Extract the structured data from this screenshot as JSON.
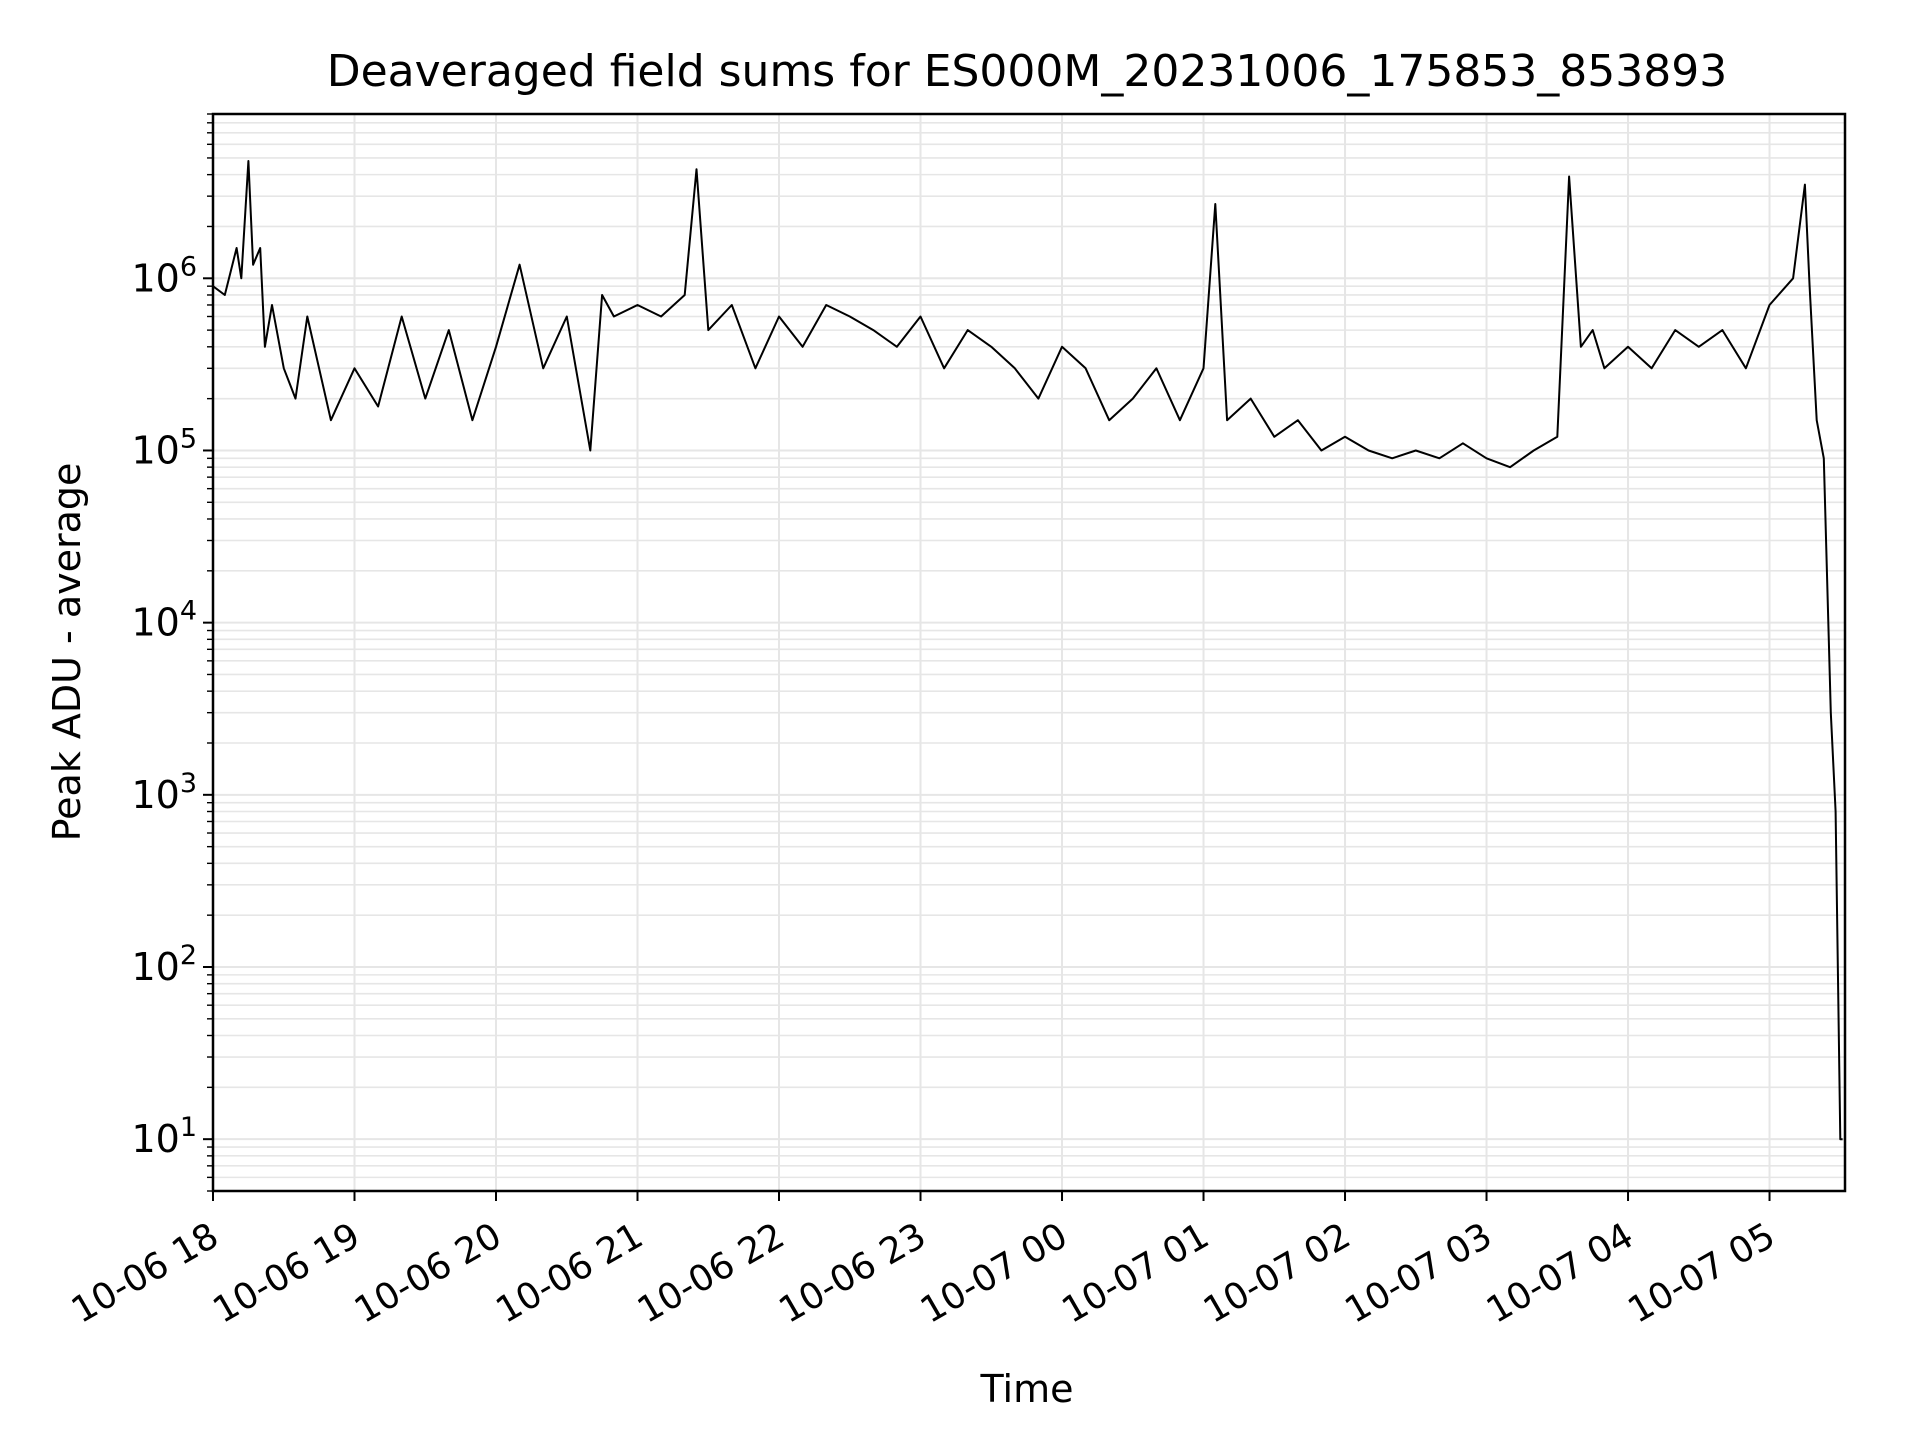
{
  "chart_data": {
    "type": "line",
    "title": "Deaveraged field sums for ES000M_20231006_175853_853893",
    "xlabel": "Time",
    "ylabel": "Peak ADU - average",
    "yscale": "log",
    "ylim": [
      5,
      9000000
    ],
    "xlim": [
      "2023-10-06 18:00",
      "2023-10-07 05:32"
    ],
    "grid": true,
    "line_color": "#000000",
    "grid_color": "#e6e6e6",
    "x_ticks": [
      {
        "time": "2023-10-06 18:00",
        "label": "10-06 18"
      },
      {
        "time": "2023-10-06 19:00",
        "label": "10-06 19"
      },
      {
        "time": "2023-10-06 20:00",
        "label": "10-06 20"
      },
      {
        "time": "2023-10-06 21:00",
        "label": "10-06 21"
      },
      {
        "time": "2023-10-06 22:00",
        "label": "10-06 22"
      },
      {
        "time": "2023-10-06 23:00",
        "label": "10-06 23"
      },
      {
        "time": "2023-10-07 00:00",
        "label": "10-07 00"
      },
      {
        "time": "2023-10-07 01:00",
        "label": "10-07 01"
      },
      {
        "time": "2023-10-07 02:00",
        "label": "10-07 02"
      },
      {
        "time": "2023-10-07 03:00",
        "label": "10-07 03"
      },
      {
        "time": "2023-10-07 04:00",
        "label": "10-07 04"
      },
      {
        "time": "2023-10-07 05:00",
        "label": "10-07 05"
      }
    ],
    "y_ticks": [
      {
        "value": 10,
        "base": "10",
        "exp": "1"
      },
      {
        "value": 100,
        "base": "10",
        "exp": "2"
      },
      {
        "value": 1000,
        "base": "10",
        "exp": "3"
      },
      {
        "value": 10000,
        "base": "10",
        "exp": "4"
      },
      {
        "value": 100000,
        "base": "10",
        "exp": "5"
      },
      {
        "value": 1000000,
        "base": "10",
        "exp": "6"
      }
    ],
    "series": [
      {
        "x": [
          "2023-10-06 18:00",
          "2023-10-06 18:05",
          "2023-10-06 18:10",
          "2023-10-06 18:12",
          "2023-10-06 18:15",
          "2023-10-06 18:17",
          "2023-10-06 18:20",
          "2023-10-06 18:22",
          "2023-10-06 18:25",
          "2023-10-06 18:30",
          "2023-10-06 18:35",
          "2023-10-06 18:40",
          "2023-10-06 18:50",
          "2023-10-06 19:00",
          "2023-10-06 19:10",
          "2023-10-06 19:20",
          "2023-10-06 19:30",
          "2023-10-06 19:40",
          "2023-10-06 19:50",
          "2023-10-06 20:00",
          "2023-10-06 20:10",
          "2023-10-06 20:20",
          "2023-10-06 20:30",
          "2023-10-06 20:40",
          "2023-10-06 20:45",
          "2023-10-06 20:50",
          "2023-10-06 21:00",
          "2023-10-06 21:10",
          "2023-10-06 21:20",
          "2023-10-06 21:25",
          "2023-10-06 21:30",
          "2023-10-06 21:40",
          "2023-10-06 21:50",
          "2023-10-06 22:00",
          "2023-10-06 22:10",
          "2023-10-06 22:20",
          "2023-10-06 22:30",
          "2023-10-06 22:40",
          "2023-10-06 22:50",
          "2023-10-06 23:00",
          "2023-10-06 23:10",
          "2023-10-06 23:20",
          "2023-10-06 23:30",
          "2023-10-06 23:40",
          "2023-10-06 23:50",
          "2023-10-07 00:00",
          "2023-10-07 00:10",
          "2023-10-07 00:20",
          "2023-10-07 00:30",
          "2023-10-07 00:40",
          "2023-10-07 00:50",
          "2023-10-07 01:00",
          "2023-10-07 01:05",
          "2023-10-07 01:10",
          "2023-10-07 01:20",
          "2023-10-07 01:30",
          "2023-10-07 01:40",
          "2023-10-07 01:50",
          "2023-10-07 02:00",
          "2023-10-07 02:10",
          "2023-10-07 02:20",
          "2023-10-07 02:30",
          "2023-10-07 02:40",
          "2023-10-07 02:50",
          "2023-10-07 03:00",
          "2023-10-07 03:10",
          "2023-10-07 03:20",
          "2023-10-07 03:30",
          "2023-10-07 03:35",
          "2023-10-07 03:40",
          "2023-10-07 03:45",
          "2023-10-07 03:50",
          "2023-10-07 04:00",
          "2023-10-07 04:10",
          "2023-10-07 04:20",
          "2023-10-07 04:30",
          "2023-10-07 04:40",
          "2023-10-07 04:50",
          "2023-10-07 05:00",
          "2023-10-07 05:10",
          "2023-10-07 05:15",
          "2023-10-07 05:17",
          "2023-10-07 05:20",
          "2023-10-07 05:23",
          "2023-10-07 05:26",
          "2023-10-07 05:28",
          "2023-10-07 05:30",
          "2023-10-07 05:31"
        ],
        "y": [
          900000,
          800000,
          1500000,
          1000000,
          4800000,
          1200000,
          1500000,
          400000,
          700000,
          300000,
          200000,
          600000,
          150000,
          300000,
          180000,
          600000,
          200000,
          500000,
          150000,
          400000,
          1200000,
          300000,
          600000,
          100000,
          800000,
          600000,
          700000,
          600000,
          800000,
          4300000,
          500000,
          700000,
          300000,
          600000,
          400000,
          700000,
          600000,
          500000,
          400000,
          600000,
          300000,
          500000,
          400000,
          300000,
          200000,
          400000,
          300000,
          150000,
          200000,
          300000,
          150000,
          300000,
          2700000,
          150000,
          200000,
          120000,
          150000,
          100000,
          120000,
          100000,
          90000,
          100000,
          90000,
          110000,
          90000,
          80000,
          100000,
          120000,
          3900000,
          400000,
          500000,
          300000,
          400000,
          300000,
          500000,
          400000,
          500000,
          300000,
          700000,
          1000000,
          3500000,
          900000,
          150000,
          90000,
          3000,
          800,
          10,
          10
        ]
      }
    ]
  }
}
